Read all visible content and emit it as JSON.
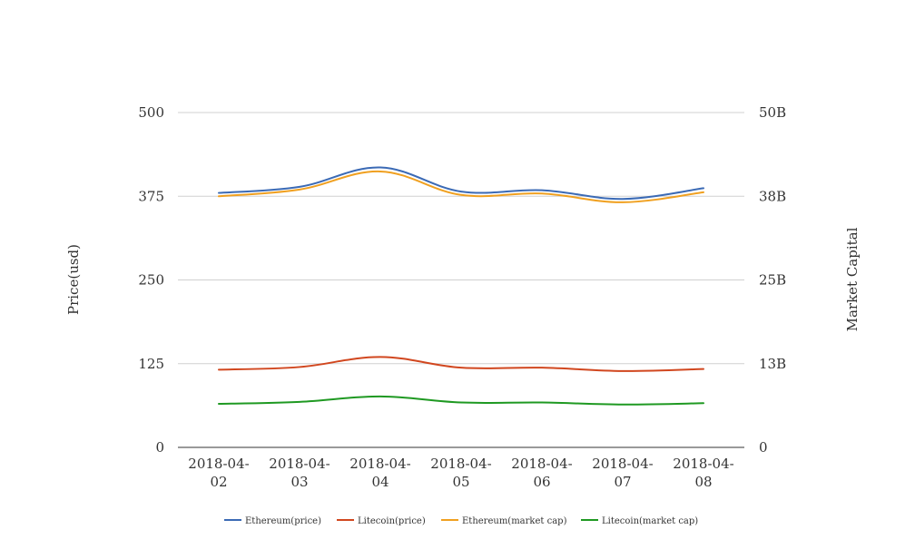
{
  "chart_data": {
    "type": "line",
    "categories": [
      "2018-04-02",
      "2018-04-03",
      "2018-04-04",
      "2018-04-05",
      "2018-04-06",
      "2018-04-07",
      "2018-04-08"
    ],
    "category_lines": [
      [
        "2018-04-",
        "02"
      ],
      [
        "2018-04-",
        "03"
      ],
      [
        "2018-04-",
        "04"
      ],
      [
        "2018-04-",
        "05"
      ],
      [
        "2018-04-",
        "06"
      ],
      [
        "2018-04-",
        "07"
      ],
      [
        "2018-04-",
        "08"
      ]
    ],
    "ylabel_left": "Price(usd)",
    "ylabel_right": "Market Capital",
    "ylim_left": [
      0,
      500
    ],
    "ylim_right": [
      0,
      50000000000
    ],
    "yticks_left": [
      "0",
      "125",
      "250",
      "375",
      "500"
    ],
    "yticks_right": [
      "0",
      "13B",
      "25B",
      "38B",
      "50B"
    ],
    "grid": true,
    "legend_position": "bottom",
    "series": [
      {
        "name": "Ethereum(price)",
        "axis": "left",
        "color": "#3b6ab5",
        "values": [
          380,
          389,
          418,
          382,
          384,
          371,
          387
        ]
      },
      {
        "name": "Litecoin(price)",
        "axis": "left",
        "color": "#d1471f",
        "values": [
          116,
          120,
          135,
          119,
          119,
          114,
          117
        ]
      },
      {
        "name": "Ethereum(market cap)",
        "axis": "right",
        "color": "#f0a020",
        "values": [
          37500000000,
          38500000000,
          41200000000,
          37700000000,
          37900000000,
          36600000000,
          38100000000
        ]
      },
      {
        "name": "Litecoin(market cap)",
        "axis": "right",
        "color": "#1f9922",
        "values": [
          6500000000,
          6800000000,
          7600000000,
          6700000000,
          6700000000,
          6400000000,
          6600000000
        ]
      }
    ]
  }
}
